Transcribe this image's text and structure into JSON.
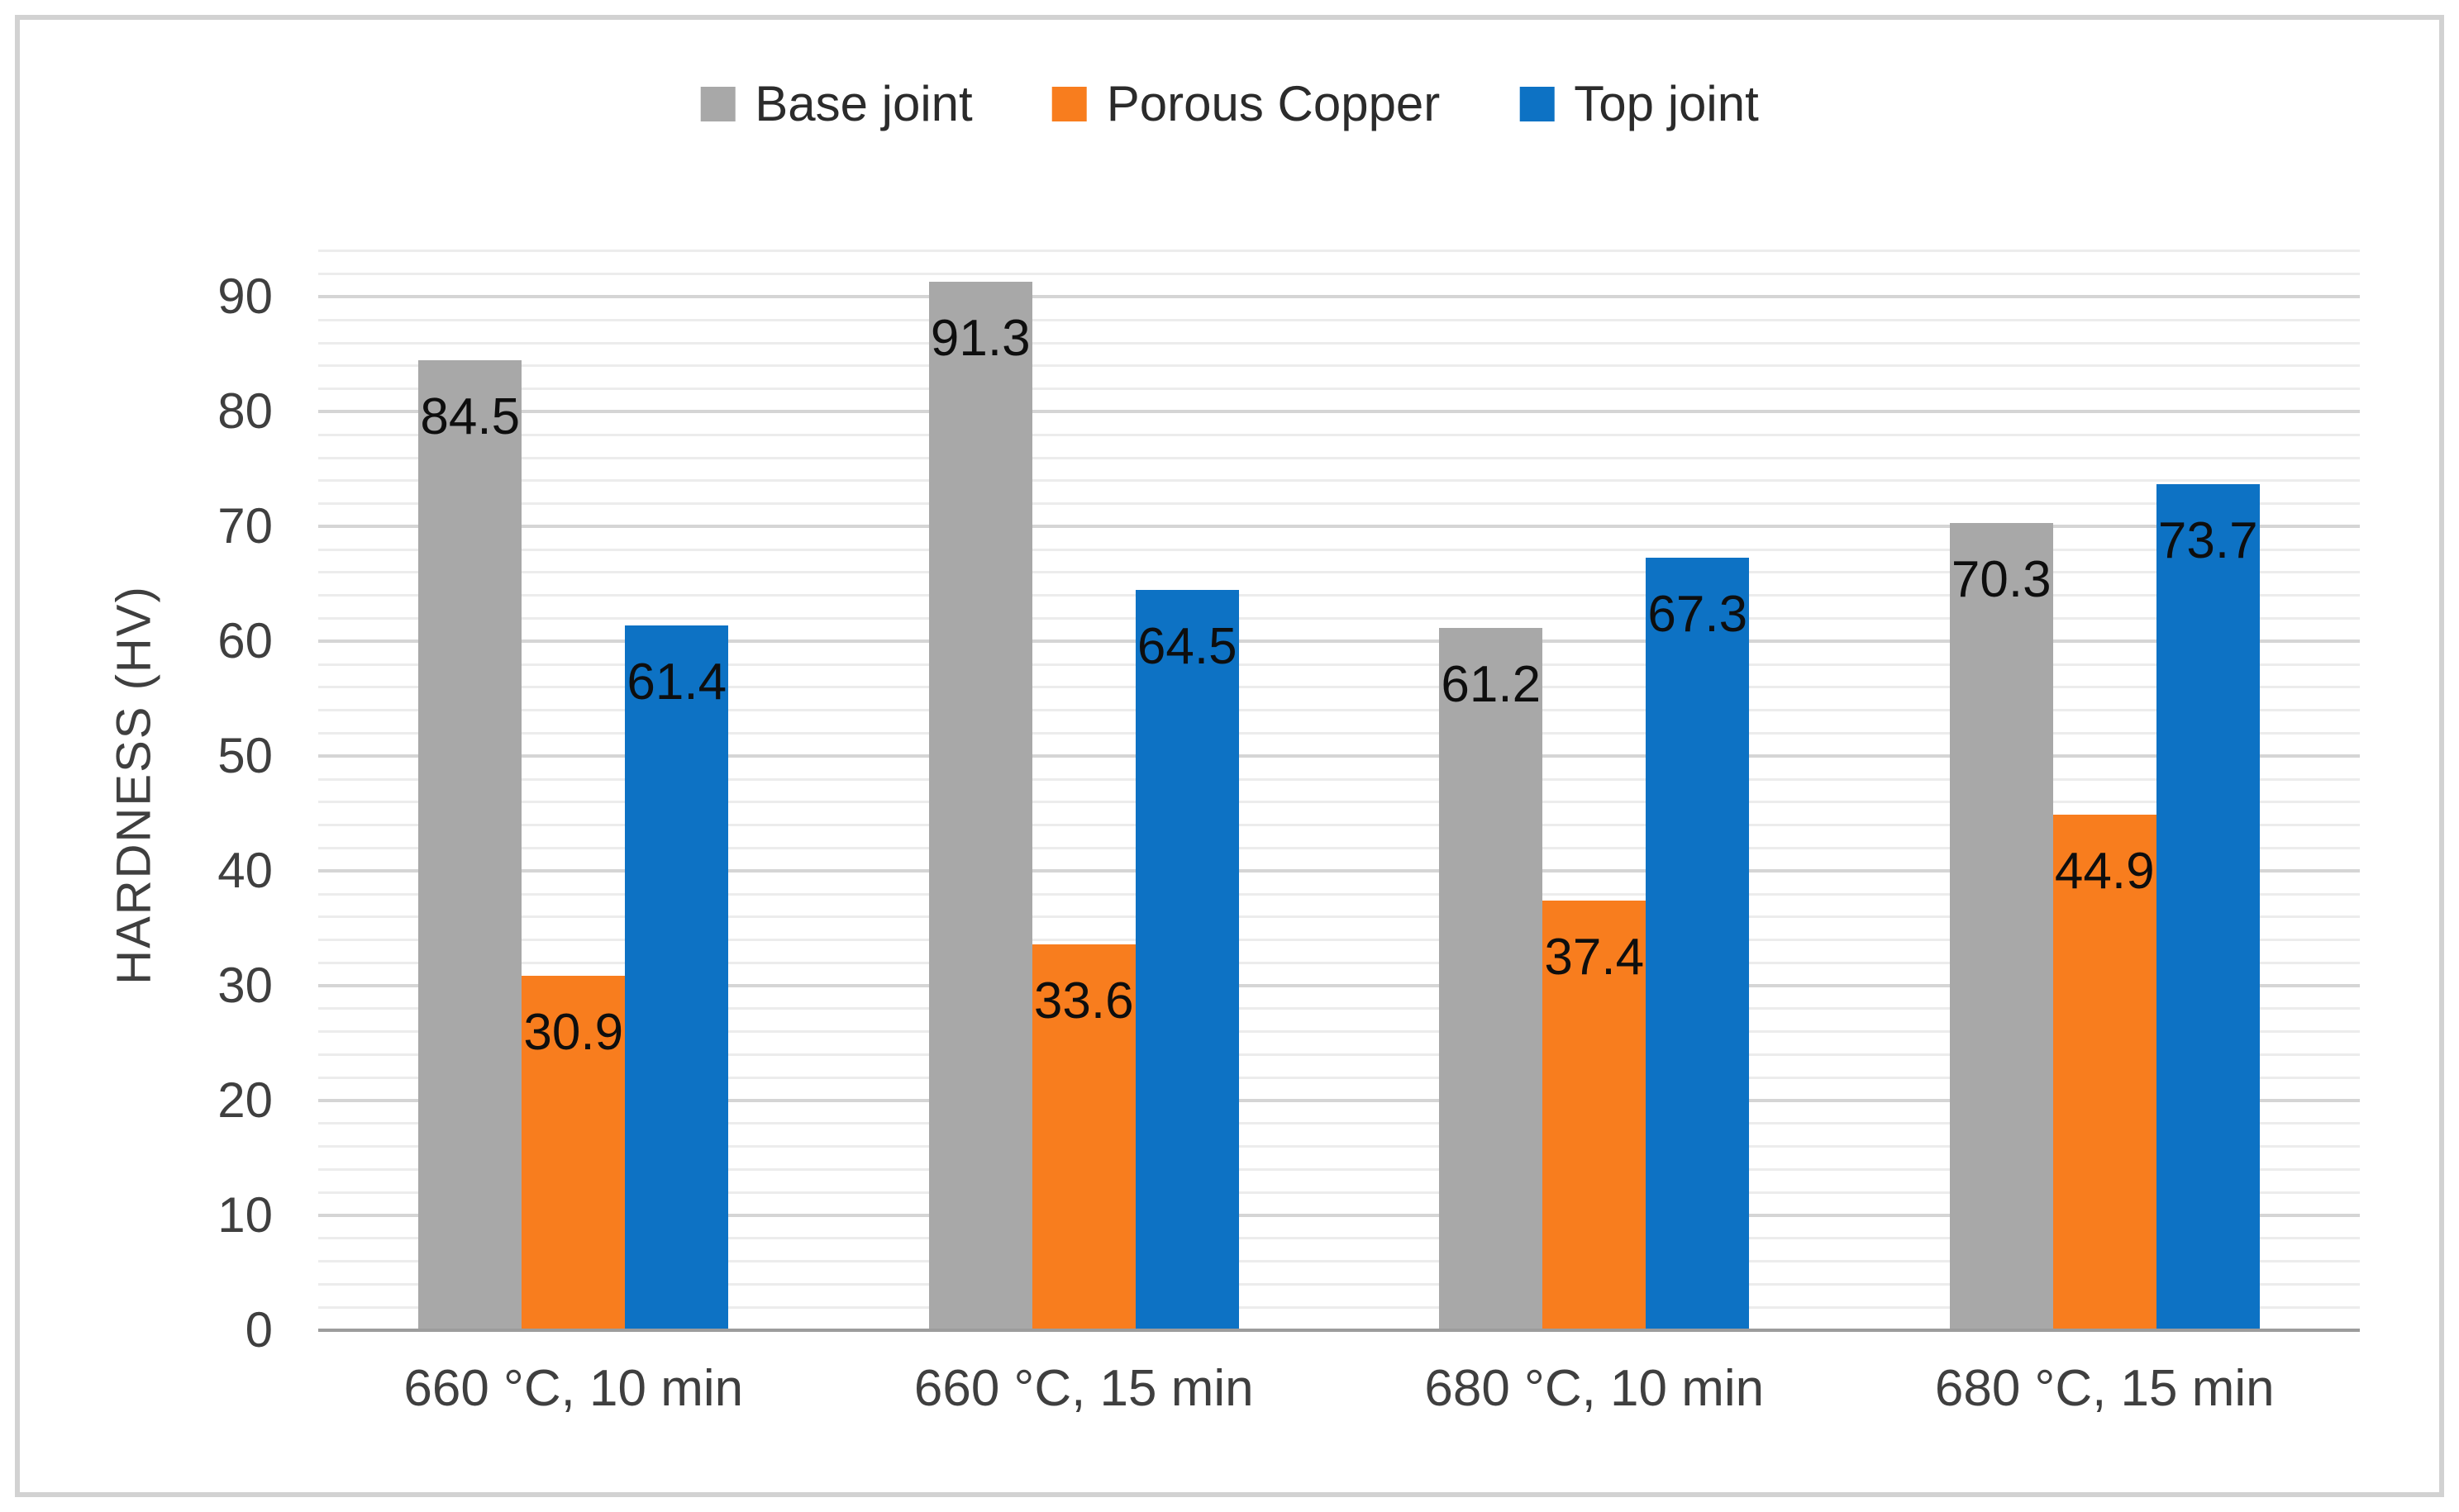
{
  "figure": {
    "background": "#ffffff",
    "border_color": "#d2d2d2"
  },
  "chart_data": {
    "type": "bar",
    "title": "",
    "xlabel": "",
    "ylabel": "HARDNESS (HV)",
    "categories": [
      "660 °C, 10 min",
      "660 °C, 15 min",
      "680 °C, 10 min",
      "680 °C, 15 min"
    ],
    "series": [
      {
        "name": "Base joint",
        "color": "#a8a8a8",
        "values": [
          84.5,
          91.3,
          61.2,
          70.3
        ]
      },
      {
        "name": "Porous Copper",
        "color": "#f87d1e",
        "values": [
          30.9,
          33.6,
          37.4,
          44.9
        ]
      },
      {
        "name": "Top joint",
        "color": "#0d72c4",
        "values": [
          61.4,
          64.5,
          67.3,
          73.7
        ]
      }
    ],
    "y_ticks": [
      0,
      10,
      20,
      30,
      40,
      50,
      60,
      70,
      80,
      90
    ],
    "ylim": [
      0,
      95
    ],
    "grid": {
      "minor_step": 2,
      "major_step": 10,
      "minor_color": "#ececec",
      "major_color": "#d5d5d5"
    },
    "axis_line_color": "#9c9c9c",
    "tick_label_color": "#3f3f3f",
    "data_label_color": "#0e0e0e",
    "legend_position": "top",
    "data_labels_position": "inside-end"
  }
}
